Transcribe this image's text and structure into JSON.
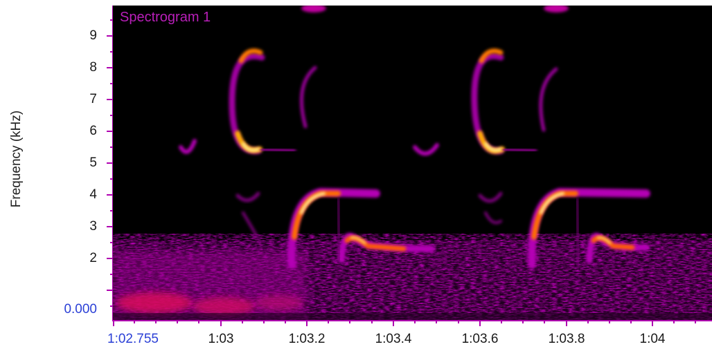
{
  "panel": {
    "title": "Spectrogram 1",
    "y_axis_label": "Frequency (kHz)",
    "y_ticks": [
      "9",
      "8",
      "7",
      "6",
      "5",
      "4",
      "3",
      "2"
    ],
    "y_origin_readout": "0.000",
    "x_origin_readout": "1:02.755",
    "x_ticks": [
      "1:03",
      "1:03.2",
      "1:03.4",
      "1:03.6",
      "1:03.8",
      "1:04"
    ]
  },
  "colors": {
    "background": "#000000",
    "accent_text": "#2a3fd6",
    "title_text": "#b91fb9",
    "axis_ticks": "#b000b0",
    "colormap": [
      "#000000",
      "#5a005a",
      "#a000a0",
      "#e01e6e",
      "#ff6a00",
      "#ffd000",
      "#fff7a0"
    ]
  }
}
